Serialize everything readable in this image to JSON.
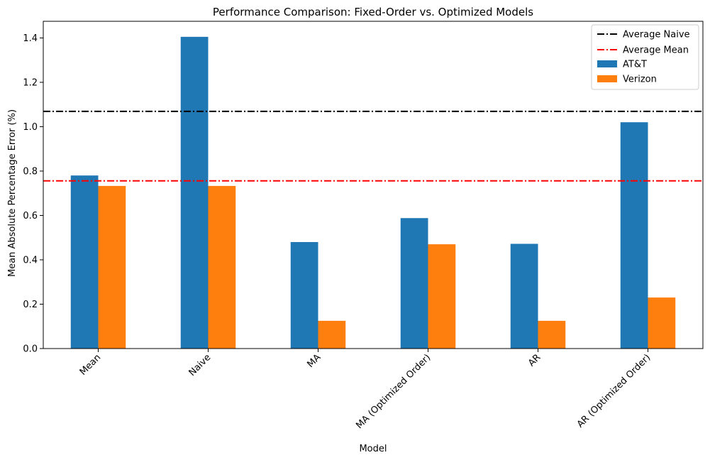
{
  "chart_data": {
    "type": "bar",
    "title": "Performance Comparison: Fixed-Order vs. Optimized Models",
    "xlabel": "Model",
    "ylabel": "Mean Absolute Percentage Error (%)",
    "categories": [
      "Mean",
      "Naive",
      "MA",
      "MA (Optimized Order)",
      "AR",
      "AR (Optimized Order)"
    ],
    "series": [
      {
        "name": "AT&T",
        "color": "#1f77b4",
        "values": [
          0.78,
          1.405,
          0.48,
          0.588,
          0.472,
          1.02
        ]
      },
      {
        "name": "Verizon",
        "color": "#ff7f0e",
        "values": [
          0.733,
          0.733,
          0.125,
          0.47,
          0.125,
          0.23
        ]
      }
    ],
    "reference_lines": [
      {
        "name": "Average Naive",
        "value": 1.069,
        "color": "#000000",
        "style": "dashdot"
      },
      {
        "name": "Average Mean",
        "value": 0.756,
        "color": "#ff0000",
        "style": "dashdot"
      }
    ],
    "ylim": [
      0,
      1.475
    ],
    "yticks": [
      "0.0",
      "0.2",
      "0.4",
      "0.6",
      "0.8",
      "1.0",
      "1.2",
      "1.4"
    ],
    "xtick_rotation": 45,
    "grid": false,
    "legend_position": "top-right"
  }
}
